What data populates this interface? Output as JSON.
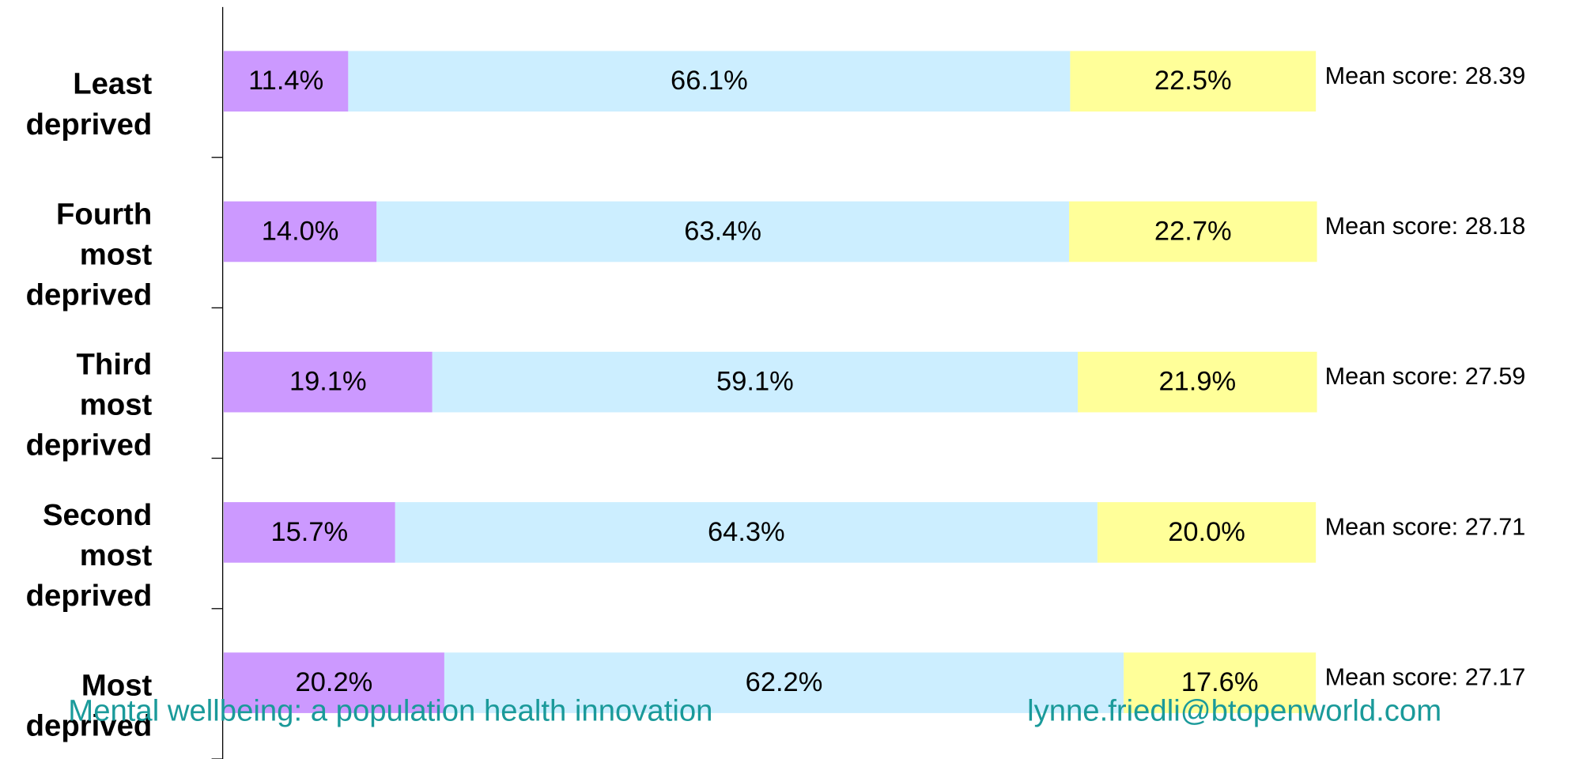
{
  "chart_data": {
    "type": "bar",
    "orientation": "horizontal",
    "stacked": true,
    "categories": [
      "Least deprived",
      "Fourth most deprived",
      "Third most deprived",
      "Second most deprived",
      "Most deprived"
    ],
    "series": [
      {
        "color": "#cc99ff",
        "values": [
          11.4,
          14.0,
          19.1,
          15.7,
          20.2
        ],
        "value_labels": [
          "11.4%",
          "14.0%",
          "19.1%",
          "15.7%",
          "20.2%"
        ]
      },
      {
        "color": "#cceeff",
        "values": [
          66.1,
          63.4,
          59.1,
          64.3,
          62.2
        ],
        "value_labels": [
          "66.1%",
          "63.4%",
          "59.1%",
          "64.3%",
          "62.2%"
        ]
      },
      {
        "color": "#ffff99",
        "values": [
          22.5,
          22.7,
          21.9,
          20.0,
          17.6
        ],
        "value_labels": [
          "22.5%",
          "22.7%",
          "21.9%",
          "20.0%",
          "17.6%"
        ]
      }
    ],
    "annotations": [
      "Mean score: 28.39",
      "Mean score: 28.18",
      "Mean score: 27.59",
      "Mean score: 27.71",
      "Mean score: 27.17"
    ],
    "xlim": [
      0,
      100
    ]
  },
  "footer": {
    "left": "Mental wellbeing: a population health innovation",
    "right": "lynne.friedli@btopenworld.com"
  }
}
